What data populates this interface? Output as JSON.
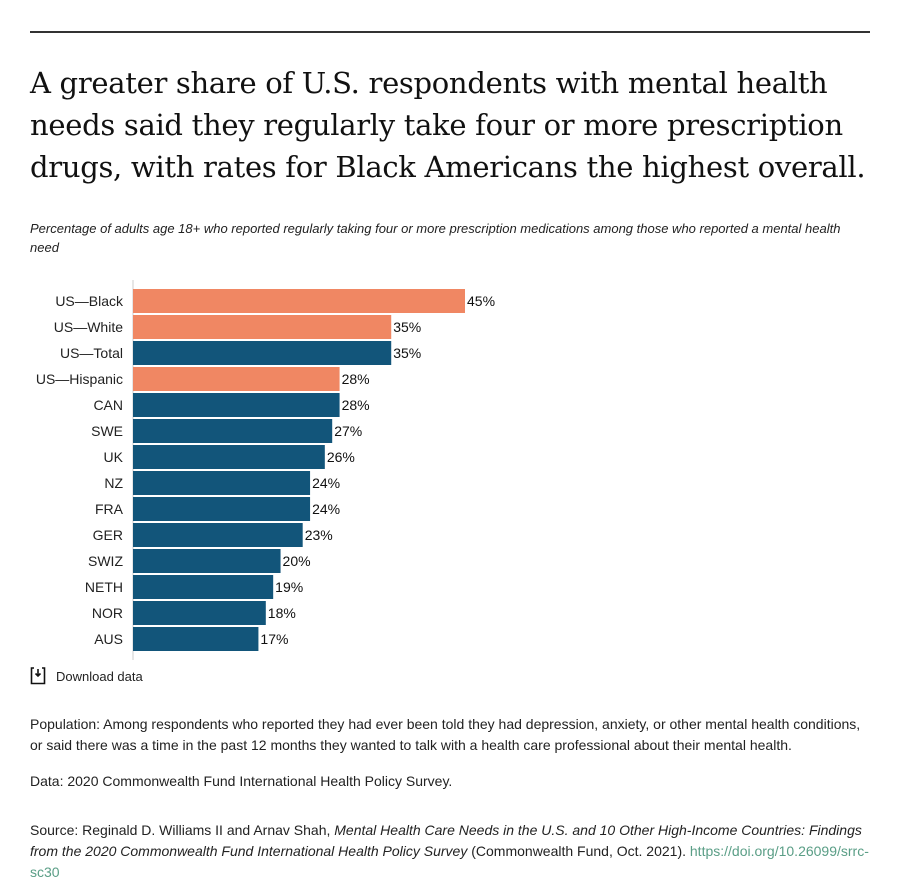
{
  "title": "A greater share of U.S. respondents with mental health needs said they regularly take four or more prescription drugs, with rates for Black Americans the highest overall.",
  "subtitle": "Percentage of adults age 18+ who reported regularly taking four or more prescription medications among those who reported a mental health need",
  "colors": {
    "us_subgroup": "#F08763",
    "total_country": "#12557A",
    "link": "#5A9E86"
  },
  "chart_data": {
    "type": "bar",
    "orientation": "horizontal",
    "xlim": [
      0,
      45
    ],
    "grid": false,
    "categories": [
      "US—Black",
      "US—White",
      "US—Total",
      "US—Hispanic",
      "CAN",
      "SWE",
      "UK",
      "NZ",
      "FRA",
      "GER",
      "SWIZ",
      "NETH",
      "NOR",
      "AUS"
    ],
    "values": [
      45,
      35,
      35,
      28,
      28,
      27,
      26,
      24,
      24,
      23,
      20,
      19,
      18,
      17
    ],
    "labels": [
      "45%",
      "35%",
      "35%",
      "28%",
      "28%",
      "27%",
      "26%",
      "24%",
      "24%",
      "23%",
      "20%",
      "19%",
      "18%",
      "17%"
    ],
    "highlight": [
      true,
      true,
      false,
      true,
      false,
      false,
      false,
      false,
      false,
      false,
      false,
      false,
      false,
      false
    ]
  },
  "download": {
    "label": "Download data",
    "icon": "download-icon"
  },
  "notes": {
    "population": "Population: Among respondents who reported they had ever been told they had depression, anxiety, or other mental health conditions, or said there was a time in the past 12 months they wanted to talk with a health care professional about their mental health.",
    "data": "Data: 2020 Commonwealth Fund International Health Policy Survey.",
    "source_prefix": "Source: Reginald D. Williams II and Arnav Shah, ",
    "source_title": "Mental Health Care Needs in the U.S. and 10 Other High-Income Countries: Findings from the 2020 Commonwealth Fund International Health Policy Survey",
    "source_suffix": " (Commonwealth Fund, Oct. 2021). ",
    "source_link": "https://doi.org/10.26099/srrc-sc30"
  }
}
